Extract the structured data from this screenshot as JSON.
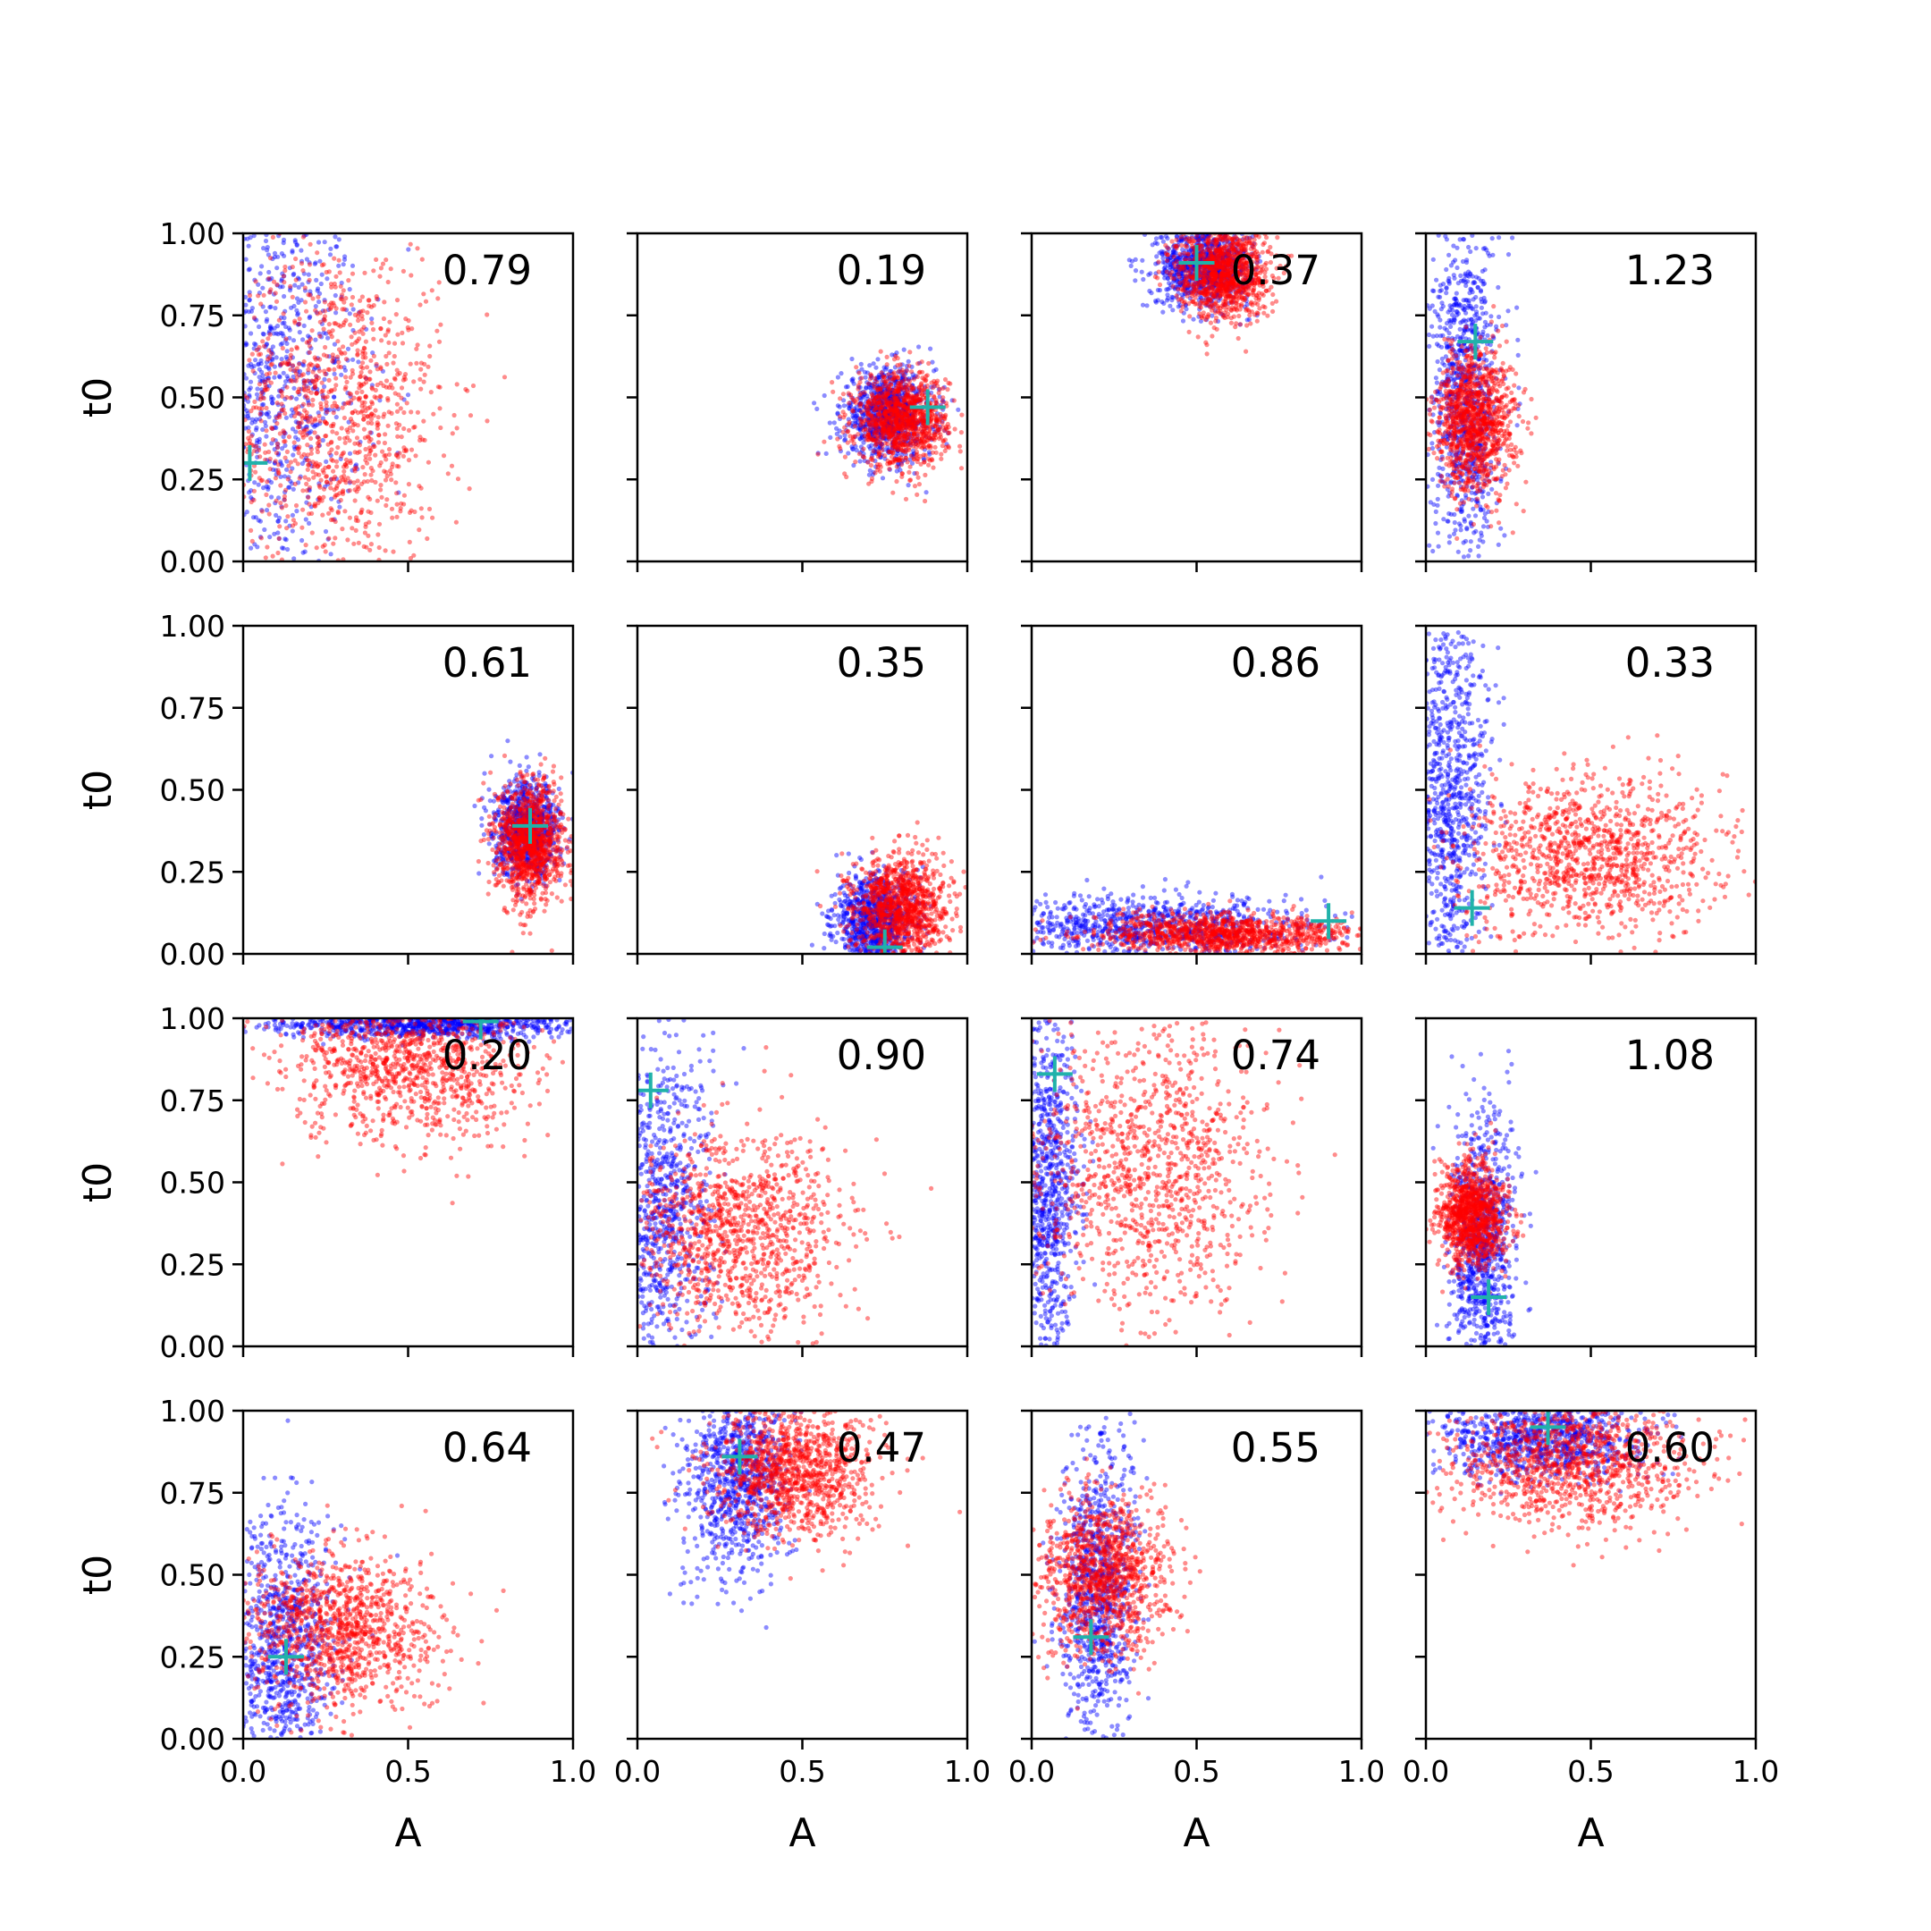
{
  "chart_data": {
    "type": "scatter",
    "layout": {
      "rows": 4,
      "cols": 4
    },
    "xlabel": "A",
    "ylabel": "t0",
    "xlim": [
      0.0,
      1.0
    ],
    "ylim": [
      0.0,
      1.0
    ],
    "xticks": [
      "0.0",
      "0.5",
      "1.0"
    ],
    "yticks": [
      "0.00",
      "0.25",
      "0.50",
      "0.75",
      "1.00"
    ],
    "grid": false,
    "colors": {
      "blue": "#0000ff",
      "red": "#ff0000",
      "marker": "#20b2aa"
    },
    "subplots": [
      {
        "annotation": "0.79",
        "marker": [
          0.02,
          0.3
        ],
        "red": {
          "cx": 0.28,
          "cy": 0.45,
          "sx": 0.16,
          "sy": 0.26
        },
        "blue": {
          "cx": 0.08,
          "cy": 0.55,
          "sx": 0.14,
          "sy": 0.3
        }
      },
      {
        "annotation": "0.19",
        "marker": [
          0.88,
          0.47
        ],
        "red": {
          "cx": 0.8,
          "cy": 0.43,
          "sx": 0.07,
          "sy": 0.07
        },
        "blue": {
          "cx": 0.76,
          "cy": 0.45,
          "sx": 0.07,
          "sy": 0.07
        }
      },
      {
        "annotation": "0.37",
        "marker": [
          0.5,
          0.91
        ],
        "red": {
          "cx": 0.58,
          "cy": 0.88,
          "sx": 0.07,
          "sy": 0.07
        },
        "blue": {
          "cx": 0.52,
          "cy": 0.9,
          "sx": 0.07,
          "sy": 0.06
        }
      },
      {
        "annotation": "1.23",
        "marker": [
          0.15,
          0.67
        ],
        "red": {
          "cx": 0.15,
          "cy": 0.43,
          "sx": 0.06,
          "sy": 0.11
        },
        "blue": {
          "cx": 0.12,
          "cy": 0.5,
          "sx": 0.05,
          "sy": 0.25
        }
      },
      {
        "annotation": "0.61",
        "marker": [
          0.87,
          0.39
        ],
        "red": {
          "cx": 0.87,
          "cy": 0.34,
          "sx": 0.05,
          "sy": 0.09
        },
        "blue": {
          "cx": 0.86,
          "cy": 0.38,
          "sx": 0.05,
          "sy": 0.07
        }
      },
      {
        "annotation": "0.35",
        "marker": [
          0.75,
          0.02
        ],
        "red": {
          "cx": 0.8,
          "cy": 0.14,
          "sx": 0.07,
          "sy": 0.08
        },
        "blue": {
          "cx": 0.72,
          "cy": 0.1,
          "sx": 0.06,
          "sy": 0.07
        }
      },
      {
        "annotation": "0.86",
        "marker": [
          0.9,
          0.1
        ],
        "red": {
          "cx": 0.6,
          "cy": 0.06,
          "sx": 0.2,
          "sy": 0.03
        },
        "blue": {
          "cx": 0.35,
          "cy": 0.08,
          "sx": 0.25,
          "sy": 0.05
        }
      },
      {
        "annotation": "0.33",
        "marker": [
          0.14,
          0.14
        ],
        "red": {
          "cx": 0.5,
          "cy": 0.3,
          "sx": 0.2,
          "sy": 0.12
        },
        "blue": {
          "cx": 0.07,
          "cy": 0.5,
          "sx": 0.06,
          "sy": 0.3
        }
      },
      {
        "annotation": "0.20",
        "marker": [
          0.72,
          0.99
        ],
        "red": {
          "cx": 0.5,
          "cy": 0.86,
          "sx": 0.18,
          "sy": 0.12
        },
        "blue": {
          "cx": 0.55,
          "cy": 0.98,
          "sx": 0.25,
          "sy": 0.02
        }
      },
      {
        "annotation": "0.90",
        "marker": [
          0.04,
          0.78
        ],
        "red": {
          "cx": 0.3,
          "cy": 0.35,
          "sx": 0.16,
          "sy": 0.15
        },
        "blue": {
          "cx": 0.06,
          "cy": 0.4,
          "sx": 0.08,
          "sy": 0.28
        }
      },
      {
        "annotation": "0.74",
        "marker": [
          0.07,
          0.83
        ],
        "red": {
          "cx": 0.35,
          "cy": 0.55,
          "sx": 0.18,
          "sy": 0.22
        },
        "blue": {
          "cx": 0.05,
          "cy": 0.5,
          "sx": 0.05,
          "sy": 0.3
        }
      },
      {
        "annotation": "1.08",
        "marker": [
          0.19,
          0.15
        ],
        "red": {
          "cx": 0.14,
          "cy": 0.4,
          "sx": 0.05,
          "sy": 0.08
        },
        "blue": {
          "cx": 0.17,
          "cy": 0.3,
          "sx": 0.05,
          "sy": 0.2
        }
      },
      {
        "annotation": "0.64",
        "marker": [
          0.13,
          0.25
        ],
        "red": {
          "cx": 0.3,
          "cy": 0.33,
          "sx": 0.15,
          "sy": 0.12
        },
        "blue": {
          "cx": 0.12,
          "cy": 0.25,
          "sx": 0.08,
          "sy": 0.2
        }
      },
      {
        "annotation": "0.47",
        "marker": [
          0.31,
          0.86
        ],
        "red": {
          "cx": 0.48,
          "cy": 0.82,
          "sx": 0.12,
          "sy": 0.1
        },
        "blue": {
          "cx": 0.3,
          "cy": 0.8,
          "sx": 0.08,
          "sy": 0.15
        }
      },
      {
        "annotation": "0.55",
        "marker": [
          0.18,
          0.31
        ],
        "red": {
          "cx": 0.22,
          "cy": 0.5,
          "sx": 0.1,
          "sy": 0.12
        },
        "blue": {
          "cx": 0.2,
          "cy": 0.45,
          "sx": 0.06,
          "sy": 0.22
        }
      },
      {
        "annotation": "0.60",
        "marker": [
          0.37,
          0.95
        ],
        "red": {
          "cx": 0.45,
          "cy": 0.85,
          "sx": 0.18,
          "sy": 0.1
        },
        "blue": {
          "cx": 0.35,
          "cy": 0.92,
          "sx": 0.15,
          "sy": 0.06
        }
      }
    ]
  }
}
